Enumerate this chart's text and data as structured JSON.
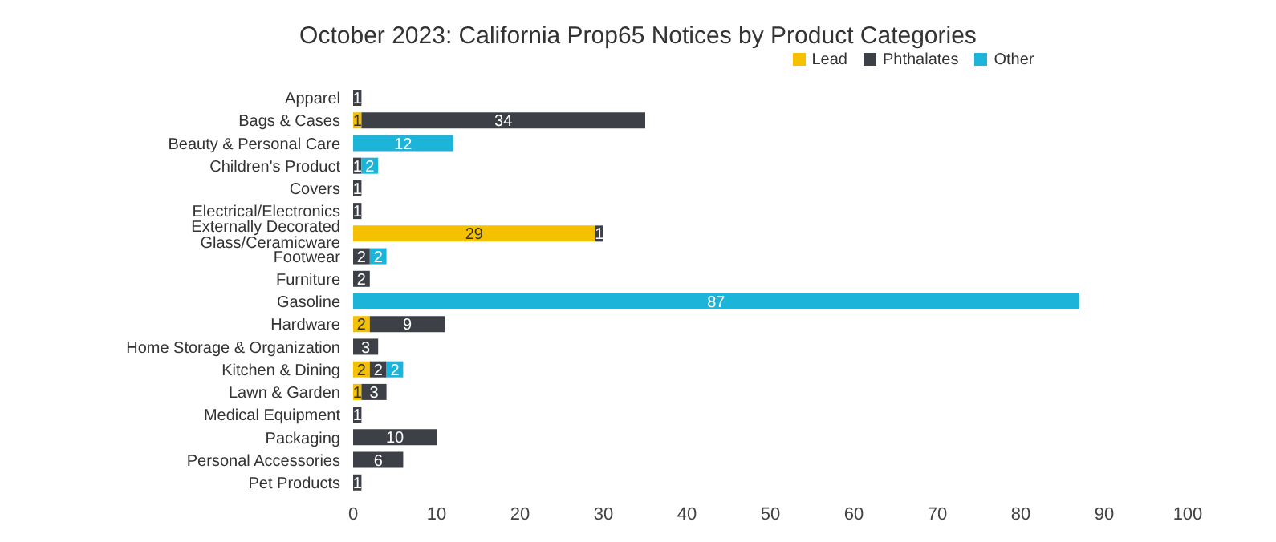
{
  "chart_data": {
    "type": "bar",
    "orientation": "horizontal",
    "stacked": true,
    "title": "October 2023: California Prop65 Notices by Product Categories",
    "categories": [
      "Apparel",
      "Bags & Cases",
      "Beauty & Personal Care",
      "Children's Product",
      "Covers",
      "Electrical/Electronics",
      "Externally Decorated Glass/Ceramicware",
      "Footwear",
      "Furniture",
      "Gasoline",
      "Hardware",
      "Home Storage & Organization",
      "Kitchen & Dining",
      "Lawn & Garden",
      "Medical Equipment",
      "Packaging",
      "Personal Accessories",
      "Pet Products"
    ],
    "series": [
      {
        "name": "Lead",
        "color": "#f5c000",
        "values": [
          null,
          1,
          null,
          null,
          null,
          null,
          29,
          null,
          null,
          null,
          2,
          null,
          2,
          1,
          null,
          null,
          null,
          null
        ]
      },
      {
        "name": "Phthalates",
        "color": "#3d4046",
        "values": [
          1,
          34,
          null,
          1,
          1,
          1,
          1,
          2,
          2,
          null,
          9,
          3,
          2,
          3,
          1,
          10,
          6,
          1
        ]
      },
      {
        "name": "Other",
        "color": "#1cb4d8",
        "values": [
          null,
          null,
          12,
          2,
          null,
          null,
          null,
          2,
          null,
          87,
          null,
          null,
          2,
          null,
          null,
          null,
          null,
          null
        ]
      }
    ],
    "xlim": [
      0,
      100
    ],
    "xticks": [
      0,
      10,
      20,
      30,
      40,
      50,
      60,
      70,
      80,
      90,
      100
    ],
    "data_labels": true,
    "legend": "top",
    "grid": false
  }
}
